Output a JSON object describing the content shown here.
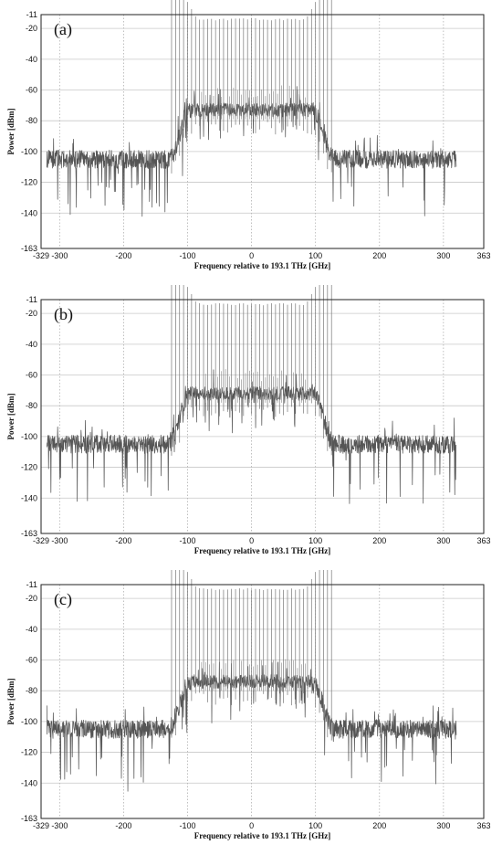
{
  "chart_data": [
    {
      "type": "line",
      "panel_label": "(a)",
      "xlabel": "Frequency relative to 193.1 THz [GHz]",
      "ylabel": "Power [dBm]",
      "xlim": [
        -329,
        363
      ],
      "ylim": [
        -163,
        -11
      ],
      "xticks": [
        -329,
        -300,
        -200,
        -100,
        0,
        100,
        200,
        300,
        363
      ],
      "yticks": [
        -11,
        -20,
        -40,
        -60,
        -80,
        -100,
        -120,
        -140,
        -163
      ],
      "grid": true,
      "grid_style": "dotted vertical, solid horizontal",
      "series_color": "#555555",
      "spectrum": {
        "x_range": [
          -320,
          320
        ],
        "noise_floor_dbm": -105,
        "plateau_dbm": -73,
        "plateau_x_range": [
          -95,
          95
        ],
        "shoulder_rise_x": [
          -130,
          -95
        ],
        "shoulder_fall_x": [
          95,
          130
        ],
        "carrier_spacing_ghz": 6.25,
        "carrier_peak_dbm": -14,
        "carrier_x_range": [
          -85,
          85
        ],
        "carrier_tail_x_range": [
          -125,
          125
        ]
      }
    },
    {
      "type": "line",
      "panel_label": "(b)",
      "xlabel": "Frequency relative to 193.1 THz [GHz]",
      "ylabel": "Power [dBm]",
      "xlim": [
        -329,
        363
      ],
      "ylim": [
        -163,
        -11
      ],
      "xticks": [
        -329,
        -300,
        -200,
        -100,
        0,
        100,
        200,
        300,
        363
      ],
      "yticks": [
        -11,
        -20,
        -40,
        -60,
        -80,
        -100,
        -120,
        -140,
        -163
      ],
      "grid": true,
      "grid_style": "dotted vertical, solid horizontal",
      "series_color": "#555555",
      "spectrum": {
        "x_range": [
          -320,
          320
        ],
        "noise_floor_dbm": -105,
        "plateau_dbm": -72,
        "plateau_x_range": [
          -95,
          95
        ],
        "shoulder_rise_x": [
          -130,
          -95
        ],
        "shoulder_fall_x": [
          95,
          130
        ],
        "carrier_spacing_ghz": 6.25,
        "carrier_peak_dbm": -14,
        "carrier_x_range": [
          -85,
          85
        ],
        "carrier_tail_x_range": [
          -125,
          125
        ]
      }
    },
    {
      "type": "line",
      "panel_label": "(c)",
      "xlabel": "Frequency relative to 193.1 THz [GHz]",
      "ylabel": "Power [dBm]",
      "xlim": [
        -329,
        363
      ],
      "ylim": [
        -163,
        -11
      ],
      "xticks": [
        -329,
        -300,
        -200,
        -100,
        0,
        100,
        200,
        300,
        363
      ],
      "yticks": [
        -11,
        -20,
        -40,
        -60,
        -80,
        -100,
        -120,
        -140,
        -163
      ],
      "grid": true,
      "grid_style": "dotted vertical, solid horizontal",
      "series_color": "#555555",
      "spectrum": {
        "x_range": [
          -320,
          320
        ],
        "noise_floor_dbm": -105,
        "plateau_dbm": -74,
        "plateau_x_range": [
          -95,
          95
        ],
        "shoulder_rise_x": [
          -130,
          -95
        ],
        "shoulder_fall_x": [
          95,
          130
        ],
        "carrier_spacing_ghz": 6.25,
        "carrier_peak_dbm": -14,
        "carrier_x_range": [
          -85,
          85
        ],
        "carrier_tail_x_range": [
          -125,
          125
        ]
      }
    }
  ]
}
